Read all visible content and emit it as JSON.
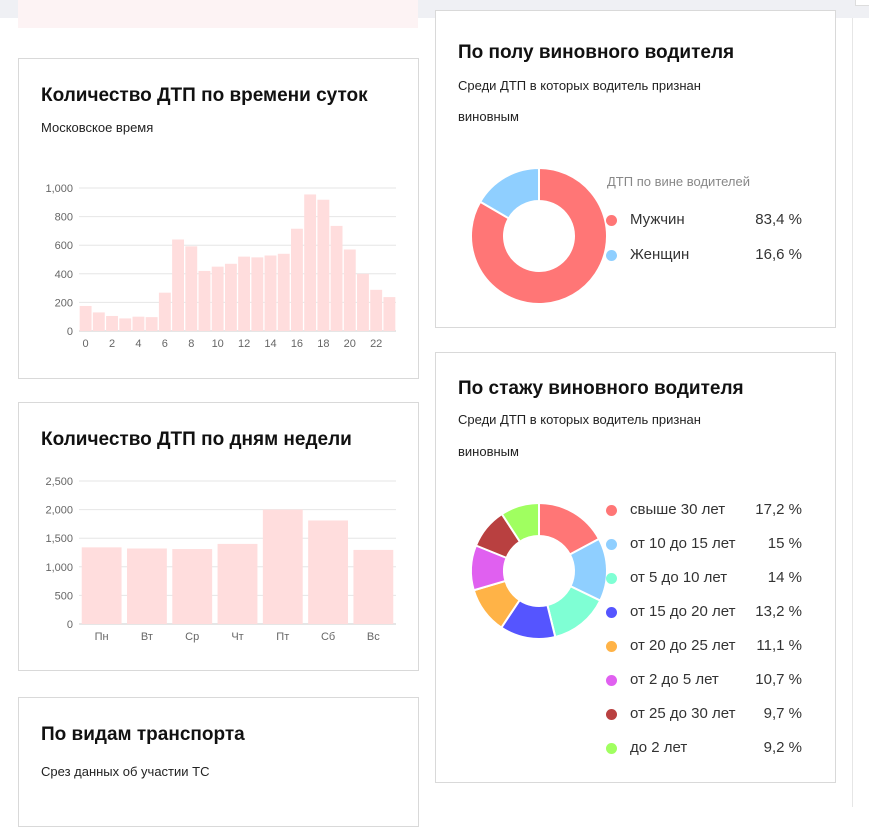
{
  "hourly_card": {
    "title": "Количество ДТП по времени суток",
    "subtitle": "Московское время"
  },
  "weekday_card": {
    "title": "Количество ДТП по дням недели"
  },
  "transport_card": {
    "title": "По видам транспорта",
    "subtitle": "Срез данных об участии ТС"
  },
  "gender_card": {
    "title": "По полу виновного водителя",
    "subtitle_line1": "Среди ДТП в которых водитель признан",
    "subtitle_line2": "виновным",
    "legend_title": "ДТП по вине водителей"
  },
  "experience_card": {
    "title": "По стажу виновного водителя",
    "subtitle_line1": "Среди ДТП в которых водитель признан",
    "subtitle_line2": "виновным"
  },
  "chart_data": [
    {
      "type": "bar",
      "name": "hourly",
      "categories": [
        "0",
        "1",
        "2",
        "3",
        "4",
        "5",
        "6",
        "7",
        "8",
        "9",
        "10",
        "11",
        "12",
        "13",
        "14",
        "15",
        "16",
        "17",
        "18",
        "19",
        "20",
        "21",
        "22",
        "23"
      ],
      "xtick_labels": [
        "0",
        "2",
        "4",
        "6",
        "8",
        "10",
        "12",
        "14",
        "16",
        "18",
        "20",
        "22"
      ],
      "values": [
        175,
        130,
        105,
        88,
        100,
        97,
        268,
        640,
        592,
        420,
        450,
        470,
        520,
        515,
        528,
        540,
        715,
        955,
        918,
        735,
        570,
        400,
        288,
        237
      ],
      "yticks": [
        "0",
        "200",
        "400",
        "600",
        "800",
        "1,000"
      ],
      "ytick_values": [
        0,
        200,
        400,
        600,
        800,
        1000
      ],
      "ylim": [
        0,
        1000
      ],
      "color": "#ffdddd"
    },
    {
      "type": "bar",
      "name": "weekday",
      "categories": [
        "Пн",
        "Вт",
        "Ср",
        "Чт",
        "Пт",
        "Сб",
        "Вс"
      ],
      "values": [
        1340,
        1320,
        1310,
        1400,
        2000,
        1810,
        1295
      ],
      "yticks": [
        "0",
        "500",
        "1,000",
        "1,500",
        "2,000",
        "2,500"
      ],
      "ytick_values": [
        0,
        500,
        1000,
        1500,
        2000,
        2500
      ],
      "ylim": [
        0,
        2500
      ],
      "color": "#ffdddd"
    },
    {
      "type": "pie",
      "name": "gender",
      "labels": [
        "Мужчин",
        "Женщин"
      ],
      "values": [
        83.4,
        16.6
      ],
      "value_labels": [
        "83,4 %",
        "16,6 %"
      ],
      "colors": [
        "#ff7676",
        "#8fcfff"
      ]
    },
    {
      "type": "pie",
      "name": "experience",
      "labels": [
        "свыше 30 лет",
        "от 10 до 15 лет",
        "от 5 до 10 лет",
        "от 15 до 20 лет",
        "от 20 до 25 лет",
        "от 2 до 5 лет",
        "от 25 до 30 лет",
        "до 2 лет"
      ],
      "values": [
        17.2,
        15,
        14,
        13.2,
        11.1,
        10.7,
        9.7,
        9.2
      ],
      "value_labels": [
        "17,2 %",
        "15 %",
        "14 %",
        "13,2 %",
        "11,1 %",
        "10,7 %",
        "9,7 %",
        "9,2 %"
      ],
      "colors": [
        "#ff7676",
        "#8fcfff",
        "#7fffd4",
        "#5555ff",
        "#ffb347",
        "#e060f0",
        "#b94040",
        "#a0ff60"
      ]
    }
  ]
}
